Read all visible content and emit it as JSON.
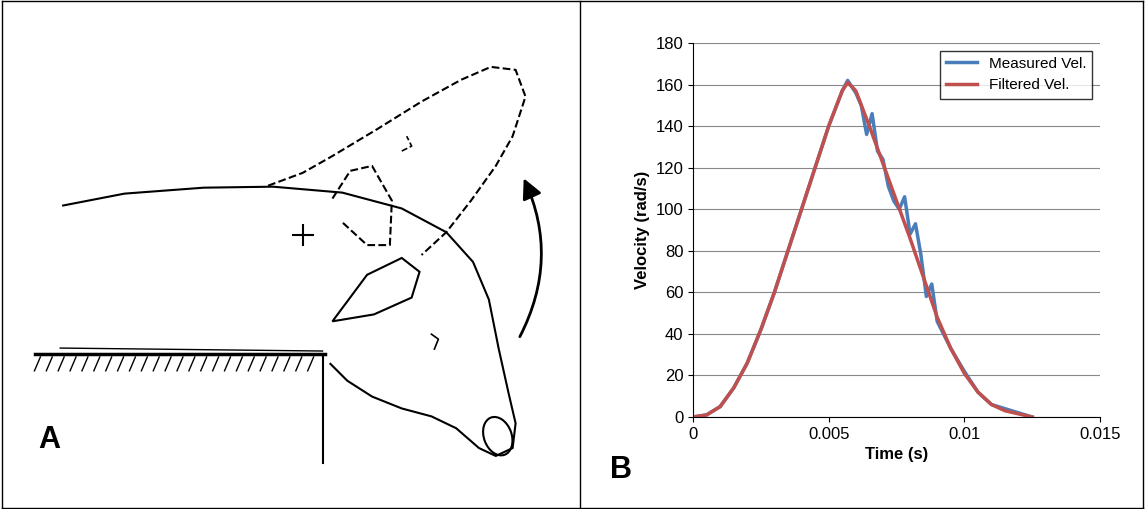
{
  "panel_labels": [
    "A",
    "B"
  ],
  "chart_data": {
    "type": "line",
    "x_label": "Time (s)",
    "y_label": "Velocity (rad/s)",
    "xlim": [
      0,
      0.015
    ],
    "xticks": [
      0,
      0.005,
      0.01,
      0.015
    ],
    "ylim": [
      0,
      180
    ],
    "yticks": [
      0,
      20,
      40,
      60,
      80,
      100,
      120,
      140,
      160,
      180
    ],
    "grid": true,
    "legend": "upper right",
    "series": [
      {
        "name": "Measured Vel.",
        "color": "#4a7ebb",
        "x": [
          0,
          0.0005,
          0.001,
          0.0015,
          0.002,
          0.0025,
          0.003,
          0.0035,
          0.004,
          0.0045,
          0.005,
          0.0055,
          0.0057,
          0.006,
          0.0062,
          0.0064,
          0.0066,
          0.0068,
          0.007,
          0.0072,
          0.0074,
          0.0076,
          0.0078,
          0.008,
          0.0082,
          0.0084,
          0.0086,
          0.0088,
          0.009,
          0.0095,
          0.01,
          0.0105,
          0.011,
          0.0115,
          0.012,
          0.0125
        ],
        "values": [
          0,
          1,
          5,
          14,
          26,
          42,
          60,
          80,
          100,
          120,
          140,
          157,
          162,
          156,
          150,
          136,
          146,
          128,
          124,
          111,
          104,
          100,
          106,
          88,
          93,
          78,
          58,
          64,
          46,
          33,
          22,
          12,
          6,
          4,
          2,
          0
        ]
      },
      {
        "name": "Filtered Vel.",
        "color": "#c0504d",
        "x": [
          0,
          0.0005,
          0.001,
          0.0015,
          0.002,
          0.0025,
          0.003,
          0.0035,
          0.004,
          0.0045,
          0.005,
          0.0055,
          0.0057,
          0.006,
          0.0065,
          0.007,
          0.0075,
          0.008,
          0.0085,
          0.009,
          0.0095,
          0.01,
          0.0105,
          0.011,
          0.0115,
          0.012,
          0.0125
        ],
        "values": [
          0,
          1,
          5,
          14,
          26,
          42,
          60,
          80,
          100,
          120,
          140,
          157,
          161,
          157,
          140,
          122,
          104,
          86,
          67,
          48,
          33,
          21,
          12,
          6,
          3,
          1.5,
          0
        ]
      }
    ]
  }
}
